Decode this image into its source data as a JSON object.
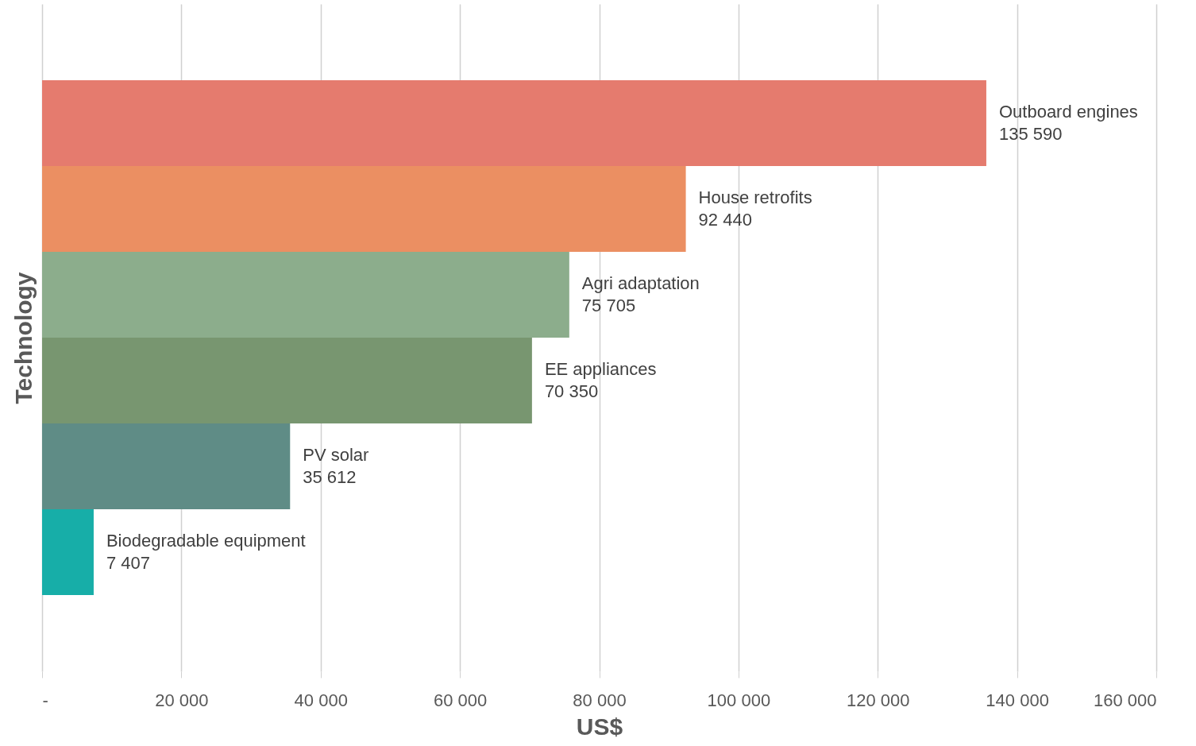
{
  "chart_data": {
    "type": "bar",
    "orientation": "horizontal",
    "xlabel": "US$",
    "ylabel": "Technology",
    "categories": [
      "Outboard engines",
      "House retrofits",
      "Agri adaptation",
      "EE appliances",
      "PV solar",
      "Biodegradable equipment"
    ],
    "values": [
      135590,
      92440,
      75705,
      70350,
      35612,
      7407
    ],
    "colors": [
      "#e57b6e",
      "#eb8f62",
      "#8cad8c",
      "#789670",
      "#5f8c86",
      "#17aea8"
    ],
    "xlim": [
      0,
      160000
    ],
    "xticks": [
      {
        "value": 0,
        "label": "-"
      },
      {
        "value": 20000,
        "label": "20 000"
      },
      {
        "value": 40000,
        "label": "40 000"
      },
      {
        "value": 60000,
        "label": "60 000"
      },
      {
        "value": 80000,
        "label": "80 000"
      },
      {
        "value": 100000,
        "label": "100 000"
      },
      {
        "value": 120000,
        "label": "120 000"
      },
      {
        "value": 140000,
        "label": "140 000"
      },
      {
        "value": 160000,
        "label": "160 000"
      }
    ],
    "grid": "x",
    "tick_labels": "x",
    "data_labels": true
  }
}
